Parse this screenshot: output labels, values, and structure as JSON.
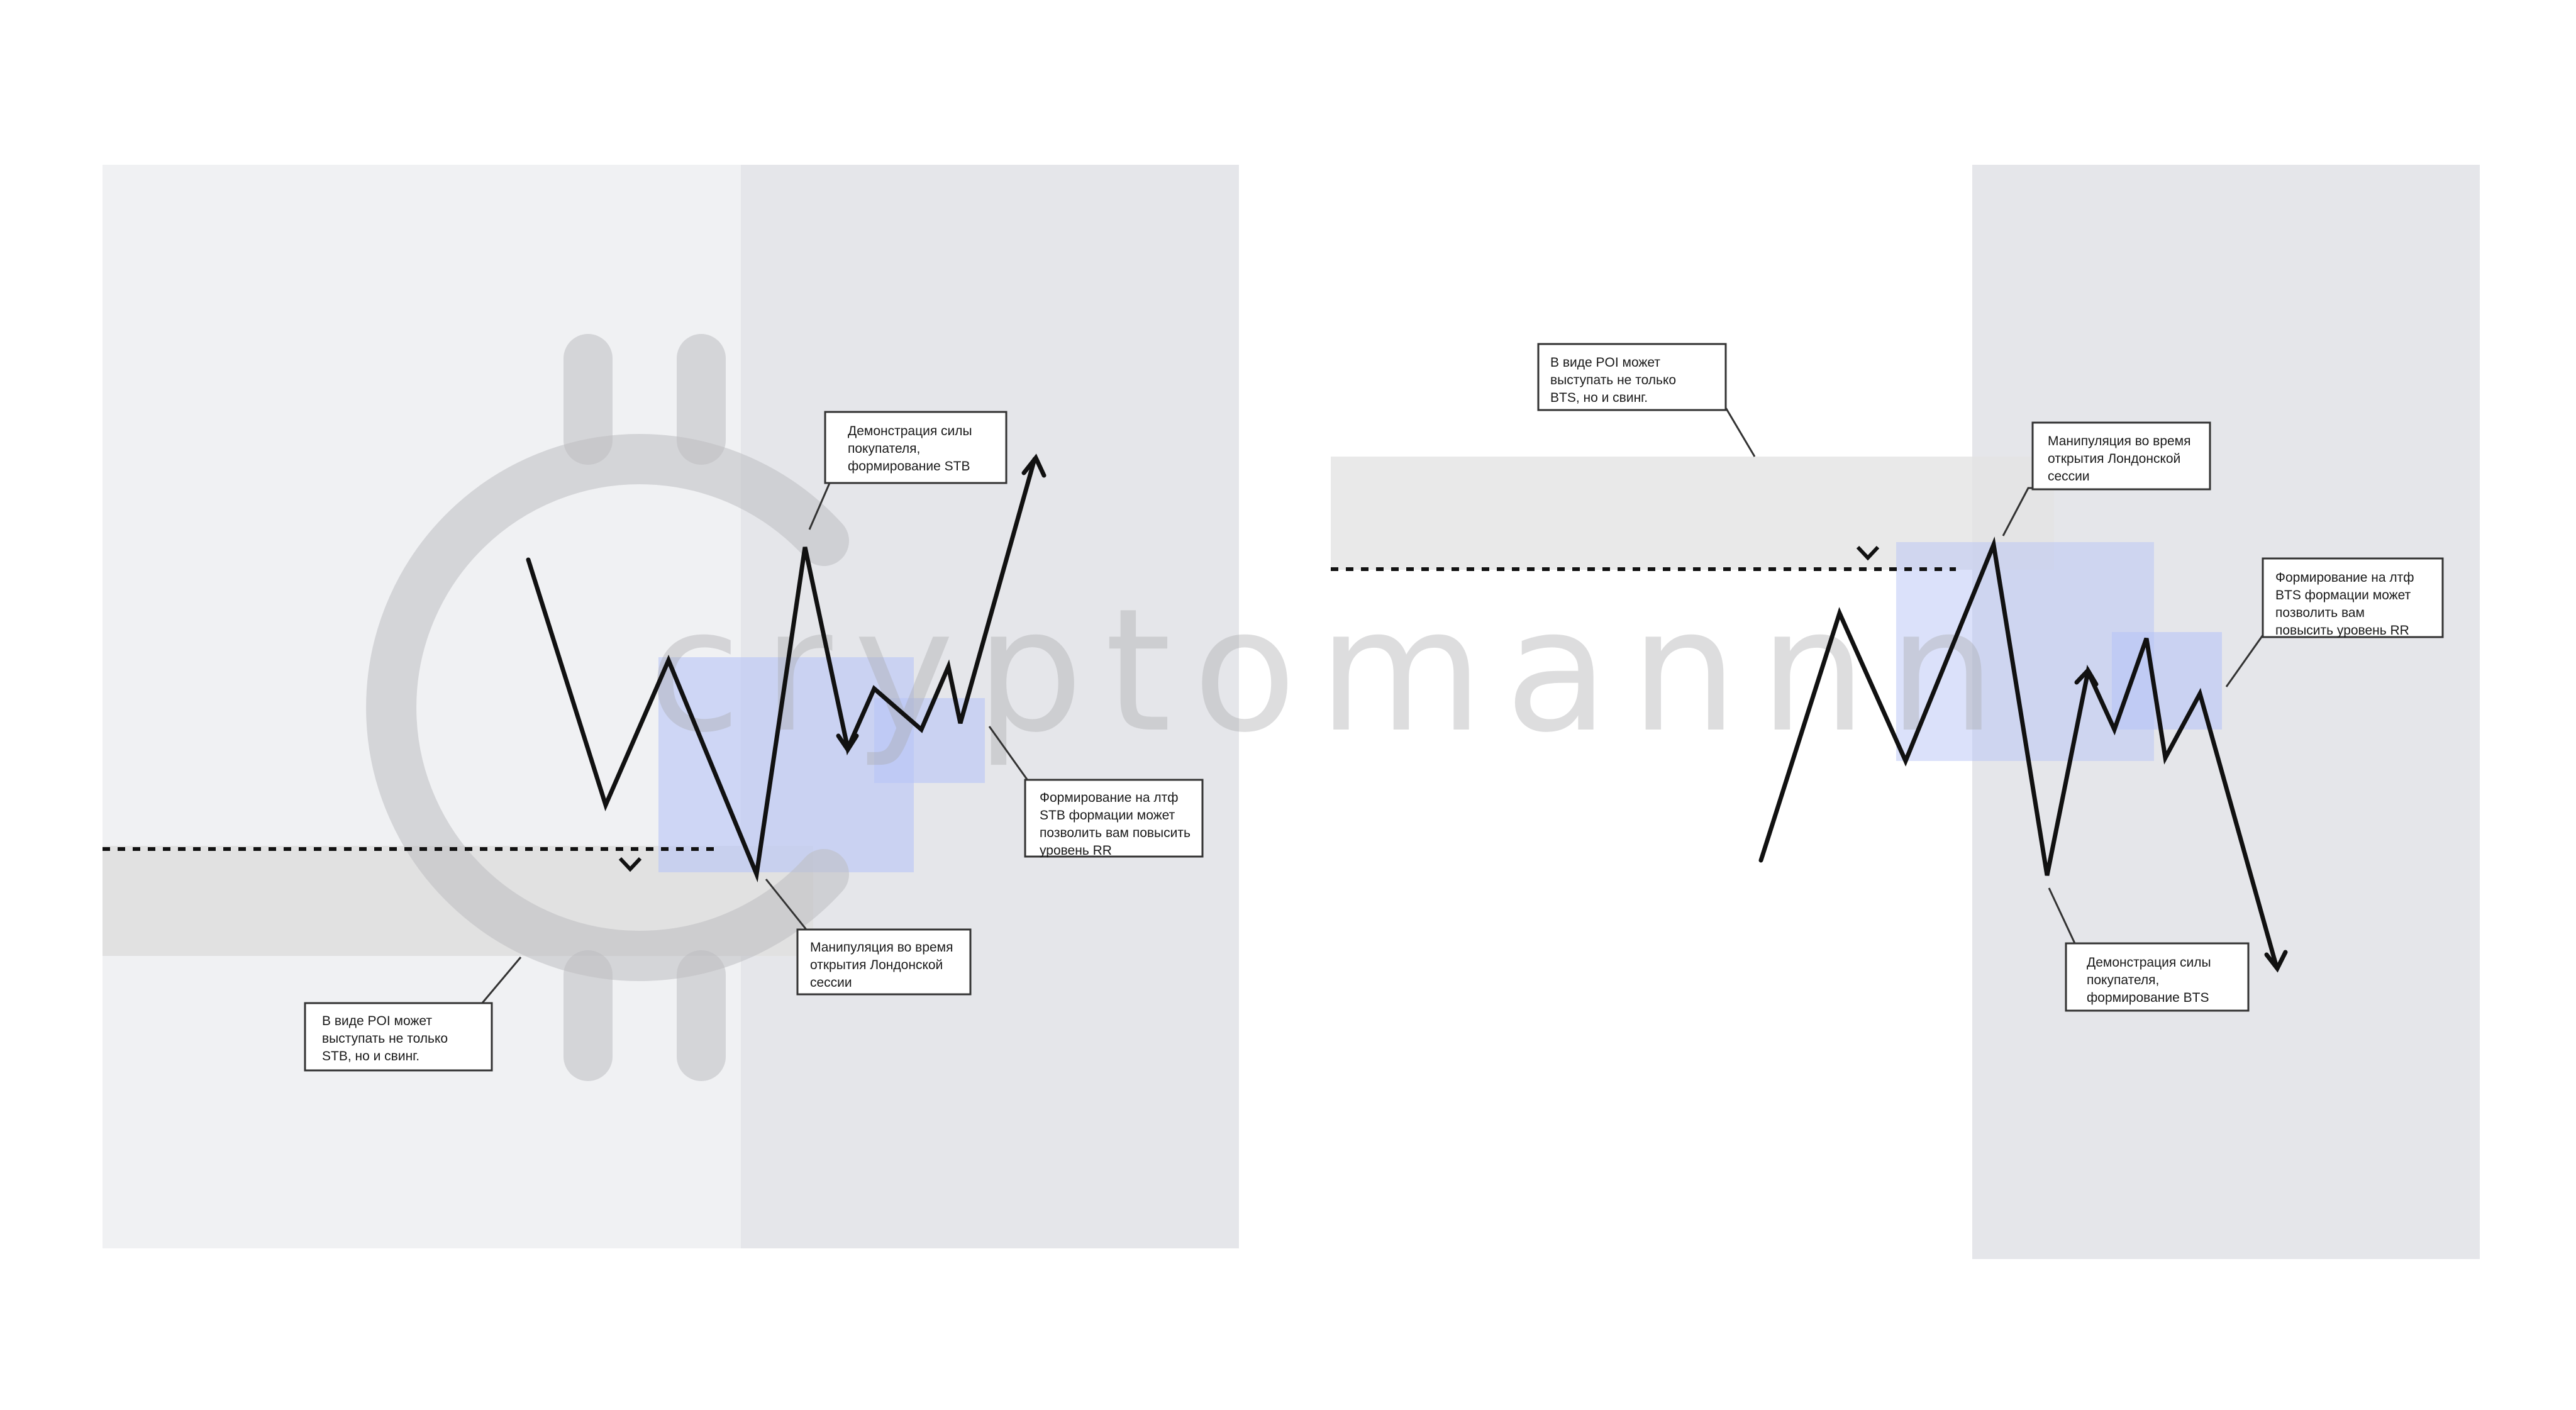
{
  "watermark": {
    "text": "cryptomannn"
  },
  "colors": {
    "background": "#ffffff",
    "panel_light": "#f0f1f3",
    "panel_dark": "#e5e6ea",
    "poi_zone": "#e1e1e1",
    "manipulation_zone": "#b8c4f6",
    "ltf_zone": "#b8c4f6",
    "price_line": "#111111",
    "watermark": "#a9a9ad"
  },
  "left_panel": {
    "callouts": {
      "buyer_strength": [
        "Демонстрация силы",
        "покупателя,",
        "формирование STB"
      ],
      "ltf_formation": [
        "Формирование на лтф",
        "STB формации может",
        "позволить вам повысить",
        "уровень RR"
      ],
      "manipulation": [
        "Манипуляция во время",
        "открытия Лондонской",
        "сессии"
      ],
      "poi": [
        "В виде POI может",
        "выступать не только",
        "STB, но и свинг."
      ]
    }
  },
  "right_panel": {
    "callouts": {
      "poi": [
        "В виде POI может",
        "выступать не только",
        "BTS, но и свинг."
      ],
      "manipulation": [
        "Манипуляция во время",
        "открытия Лондонской",
        "сессии"
      ],
      "ltf_formation": [
        "Формирование на лтф",
        "BTS формации может",
        "позволить вам",
        "повысить уровень RR"
      ],
      "buyer_strength": [
        "Демонстрация силы",
        "покупателя,",
        "формирование BTS"
      ]
    }
  }
}
